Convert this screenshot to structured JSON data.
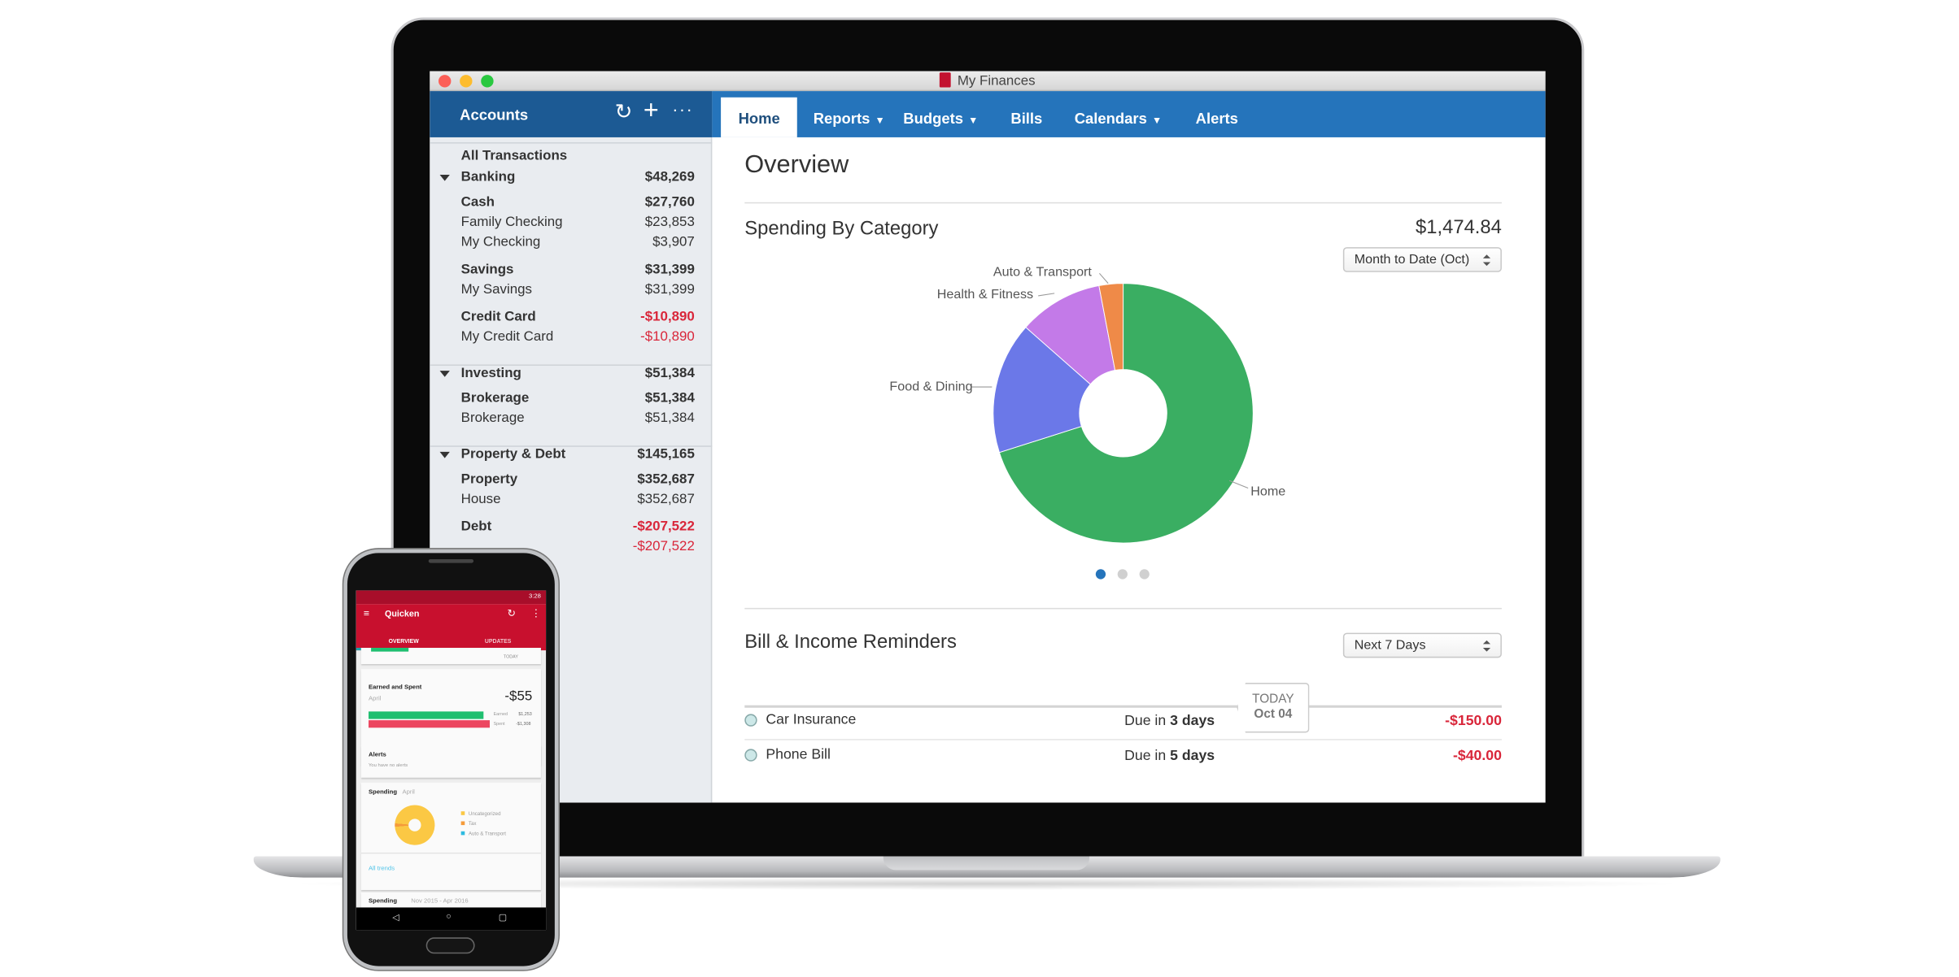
{
  "window": {
    "title": "My Finances"
  },
  "sidebar": {
    "title": "Accounts",
    "all_transactions": "All Transactions",
    "rows": [
      {
        "label": "Banking",
        "value": "$48,269",
        "kind": "group"
      },
      {
        "label": "Cash",
        "value": "$27,760",
        "kind": "sub"
      },
      {
        "label": "Family Checking",
        "value": "$23,853",
        "kind": "item"
      },
      {
        "label": "My Checking",
        "value": "$3,907",
        "kind": "item"
      },
      {
        "label": "Savings",
        "value": "$31,399",
        "kind": "sub"
      },
      {
        "label": "My Savings",
        "value": "$31,399",
        "kind": "item"
      },
      {
        "label": "Credit Card",
        "value": "-$10,890",
        "kind": "sub"
      },
      {
        "label": "My Credit Card",
        "value": "-$10,890",
        "kind": "item"
      },
      {
        "label": "Investing",
        "value": "$51,384",
        "kind": "group"
      },
      {
        "label": "Brokerage",
        "value": "$51,384",
        "kind": "sub"
      },
      {
        "label": "Brokerage",
        "value": "$51,384",
        "kind": "item"
      },
      {
        "label": "Property & Debt",
        "value": "$145,165",
        "kind": "group"
      },
      {
        "label": "Property",
        "value": "$352,687",
        "kind": "sub"
      },
      {
        "label": "House",
        "value": "$352,687",
        "kind": "item"
      },
      {
        "label": "Debt",
        "value": "-$207,522",
        "kind": "sub"
      },
      {
        "label": "",
        "value": "-$207,522",
        "kind": "item"
      }
    ]
  },
  "tabs": [
    {
      "label": "Home",
      "dropdown": false,
      "active": true
    },
    {
      "label": "Reports",
      "dropdown": true
    },
    {
      "label": "Budgets",
      "dropdown": true
    },
    {
      "label": "Bills",
      "dropdown": false
    },
    {
      "label": "Calendars",
      "dropdown": true
    },
    {
      "label": "Alerts",
      "dropdown": false
    }
  ],
  "overview": {
    "title": "Overview",
    "spending": {
      "title": "Spending By Category",
      "total": "$1,474.84",
      "period": "Month to Date (Oct)"
    },
    "bills": {
      "title": "Bill & Income Reminders",
      "period": "Next 7 Days",
      "today_label": "TODAY",
      "today_date": "Oct 04",
      "items": [
        {
          "name": "Car Insurance",
          "due_prefix": "Due in",
          "due": "3 days",
          "amount": "-$150.00"
        },
        {
          "name": "Phone Bill",
          "due_prefix": "Due in",
          "due": "5 days",
          "amount": "-$40.00"
        }
      ]
    }
  },
  "chart_data": {
    "type": "pie",
    "donut": true,
    "categories": [
      "Home",
      "Food & Dining",
      "Health & Fitness",
      "Auto & Transport"
    ],
    "values": [
      1034,
      242,
      155,
      44
    ],
    "colors": [
      "#3aae62",
      "#6b78e8",
      "#c37ae8",
      "#ef8a48"
    ],
    "pagination": {
      "pages": 3,
      "active": 1
    }
  },
  "phone": {
    "time": "3:28",
    "app_title": "Quicken",
    "tabs": [
      "OVERVIEW",
      "UPDATES"
    ],
    "today": "TODAY",
    "earned_spent": {
      "title": "Earned and Spent",
      "period": "April",
      "net": "-$55",
      "earned_label": "Earned",
      "earned": "$1,253",
      "spent_label": "Spent",
      "spent": "-$1,308"
    },
    "alerts": {
      "title": "Alerts",
      "text": "You have no alerts"
    },
    "spending": {
      "title": "Spending",
      "period": "April",
      "legend": [
        {
          "label": "Uncategorized",
          "color": "#fbc844"
        },
        {
          "label": "Tax",
          "color": "#f59b3a"
        },
        {
          "label": "Auto & Transport",
          "color": "#2ebbe0"
        }
      ],
      "link": "All trends"
    },
    "spending2": {
      "title": "Spending",
      "period": "Nov 2015 - Apr 2016"
    }
  },
  "colors": {
    "accent": "#2574bb",
    "sidebar_header": "#1c5a94",
    "negative": "#d9263a",
    "phone_brand": "#c8102e"
  }
}
